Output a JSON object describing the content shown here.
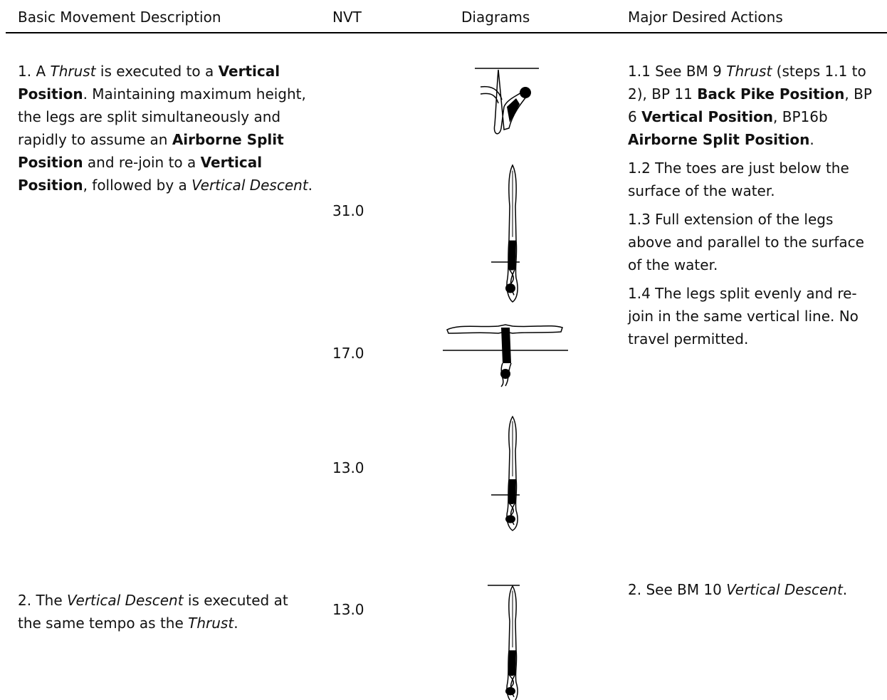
{
  "table": {
    "headers": [
      "Basic Movement Description",
      "NVT",
      "Diagrams",
      "Major Desired Actions"
    ],
    "rows": [
      {
        "description": [
          {
            "text": "1. A "
          },
          {
            "text": "Thrust",
            "italic": true
          },
          {
            "text": " is executed to a "
          },
          {
            "text": "Vertical Position",
            "bold": true
          },
          {
            "text": ". Maintaining maximum height, the legs are split simultaneously and rapidly to assume an "
          },
          {
            "text": "Airborne Split Position",
            "bold": true
          },
          {
            "text": " and re-join to a "
          },
          {
            "text": "Vertical Position",
            "bold": true
          },
          {
            "text": ", followed by a "
          },
          {
            "text": "Vertical Descent",
            "italic": true
          },
          {
            "text": "."
          }
        ],
        "nvt": [
          "31.0",
          "17.0",
          "13.0"
        ],
        "actions": [
          [
            {
              "text": "1.1 See BM 9 "
            },
            {
              "text": "Thrust",
              "italic": true
            },
            {
              "text": " (steps 1.1 to 2), BP 11 "
            },
            {
              "text": "Back Pike Position",
              "bold": true
            },
            {
              "text": ", BP 6 "
            },
            {
              "text": "Vertical Position",
              "bold": true
            },
            {
              "text": ", BP16b "
            },
            {
              "text": "Airborne Split Position",
              "bold": true
            },
            {
              "text": "."
            }
          ],
          [
            {
              "text": "1.2 The toes are just below the surface of the water."
            }
          ],
          [
            {
              "text": "1.3 Full extension of the legs above and parallel to the surface of the water."
            }
          ],
          [
            {
              "text": "1.4 The legs split evenly and re-join in the same vertical line. No travel permitted."
            }
          ]
        ]
      },
      {
        "description": [
          {
            "text": "2. The "
          },
          {
            "text": "Vertical Descent",
            "italic": true
          },
          {
            "text": " is executed at the same tempo as the "
          },
          {
            "text": "Thrust",
            "italic": true
          },
          {
            "text": "."
          }
        ],
        "nvt": [
          "13.0"
        ],
        "actions": [
          [
            {
              "text": "2. See BM 10 "
            },
            {
              "text": "Vertical Descent",
              "italic": true
            },
            {
              "text": "."
            }
          ]
        ]
      }
    ]
  }
}
